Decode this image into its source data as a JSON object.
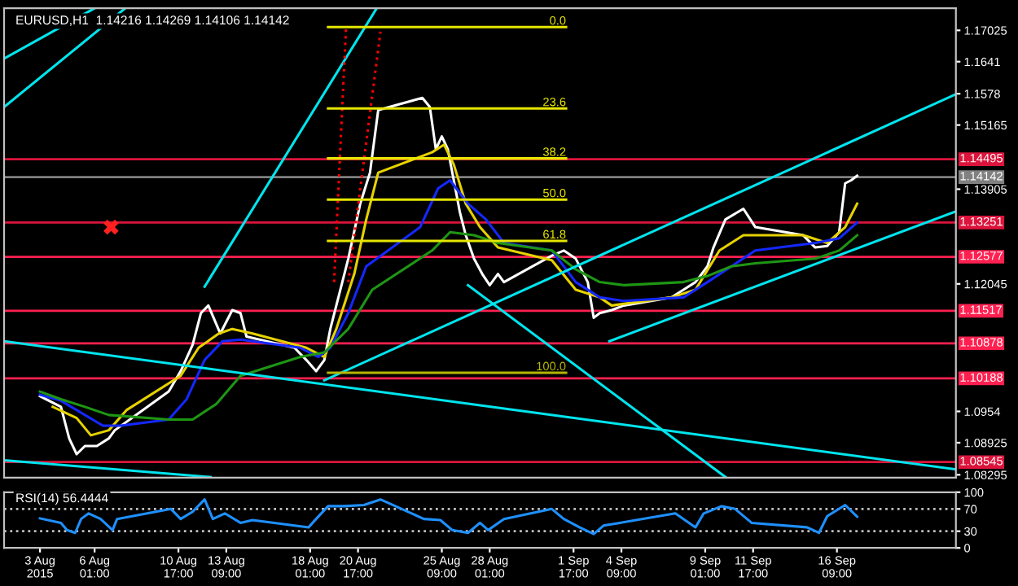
{
  "chart_data": [
    {
      "type": "line",
      "title": "EURUSD,H1  1.14216 1.14269 1.14106 1.14142",
      "tick_labels": "y",
      "xlim": [
        "2015-08-01T00:00",
        "2015-09-23T00:00"
      ],
      "ylim": [
        1.0824,
        1.1746
      ],
      "yticks": [
        1.17025,
        1.1641,
        1.1578,
        1.15165,
        1.13905,
        1.12045,
        1.0954,
        1.08925,
        1.08295
      ],
      "series": [
        {
          "color": "#ffffff",
          "x": [
            "2015-08-03T00:00",
            "2015-08-04T04:00",
            "2015-08-04T15:00",
            "2015-08-05T01:00",
            "2015-08-05T12:00",
            "2015-08-06T04:00",
            "2015-08-06T20:00",
            "2015-08-07T04:00",
            "2015-08-10T04:00",
            "2015-08-10T20:00",
            "2015-08-11T12:00",
            "2015-08-11T23:00",
            "2015-08-12T09:00",
            "2015-08-13T01:00",
            "2015-08-13T17:00",
            "2015-08-14T04:00",
            "2015-08-14T12:00",
            "2015-08-17T04:00",
            "2015-08-17T20:00",
            "2015-08-18T09:00",
            "2015-08-18T20:00",
            "2015-08-19T04:00",
            "2015-08-19T12:00",
            "2015-08-20T04:00",
            "2015-08-20T20:00",
            "2015-08-21T09:00",
            "2015-08-21T20:00",
            "2015-08-24T07:00",
            "2015-08-24T17:00",
            "2015-08-25T01:00",
            "2015-08-25T09:00",
            "2015-08-25T17:00",
            "2015-08-26T01:00",
            "2015-08-26T09:00",
            "2015-08-26T17:00",
            "2015-08-27T04:00",
            "2015-08-27T15:00",
            "2015-08-28T01:00",
            "2015-08-28T12:00",
            "2015-08-28T20:00",
            "2015-08-31T12:00",
            "2015-09-01T04:00",
            "2015-09-01T20:00",
            "2015-09-02T12:00",
            "2015-09-02T20:00",
            "2015-09-03T04:00",
            "2015-09-03T20:00",
            "2015-09-04T12:00",
            "2015-09-07T04:00",
            "2015-09-07T20:00",
            "2015-09-08T12:00",
            "2015-09-09T04:00",
            "2015-09-09T12:00",
            "2015-09-10T04:00",
            "2015-09-11T04:00",
            "2015-09-11T20:00",
            "2015-09-14T12:00",
            "2015-09-15T04:00",
            "2015-09-15T20:00",
            "2015-09-16T12:00",
            "2015-09-16T20:00",
            "2015-09-17T04:00",
            "2015-09-17T12:00"
          ],
          "values": [
            1.0984,
            1.0963,
            1.0901,
            1.087,
            1.0886,
            1.0886,
            1.0901,
            1.0917,
            1.0993,
            1.1033,
            1.1085,
            1.1147,
            1.1162,
            1.1107,
            1.1153,
            1.1147,
            1.1101,
            1.1079,
            1.1055,
            1.1033,
            1.1055,
            1.1116,
            1.1162,
            1.1254,
            1.1362,
            1.1423,
            1.1546,
            1.157,
            1.1552,
            1.1469,
            1.1494,
            1.1469,
            1.1408,
            1.1346,
            1.13,
            1.1254,
            1.1224,
            1.1202,
            1.1224,
            1.1208,
            1.126,
            1.127,
            1.1254,
            1.1208,
            1.1138,
            1.1147,
            1.1153,
            1.1162,
            1.1178,
            1.1193,
            1.1208,
            1.1239,
            1.1276,
            1.1331,
            1.1352,
            1.1316,
            1.13,
            1.1276,
            1.1279,
            1.1306,
            1.1402,
            1.1408,
            1.1417
          ]
        },
        {
          "color": "#e6d200",
          "x": [
            "2015-08-03T17:00",
            "2015-08-05T01:00",
            "2015-08-05T20:00",
            "2015-08-06T20:00",
            "2015-08-07T20:00",
            "2015-08-10T20:00",
            "2015-08-11T20:00",
            "2015-08-12T23:00",
            "2015-08-13T17:00",
            "2015-08-14T20:00",
            "2015-08-17T20:00",
            "2015-08-18T20:00",
            "2015-08-19T12:00",
            "2015-08-20T12:00",
            "2015-08-21T04:00",
            "2015-08-21T20:00",
            "2015-08-24T20:00",
            "2015-08-25T12:00",
            "2015-08-26T01:00",
            "2015-08-26T17:00",
            "2015-08-27T12:00",
            "2015-08-28T12:00",
            "2015-08-31T12:00",
            "2015-09-01T20:00",
            "2015-09-03T04:00",
            "2015-09-03T20:00",
            "2015-09-07T04:00",
            "2015-09-08T12:00",
            "2015-09-09T20:00",
            "2015-09-11T04:00",
            "2015-09-14T12:00",
            "2015-09-15T20:00",
            "2015-09-16T20:00",
            "2015-09-17T12:00"
          ],
          "values": [
            1.0963,
            1.0941,
            1.0907,
            1.0917,
            1.0957,
            1.1024,
            1.1079,
            1.1107,
            1.1116,
            1.1107,
            1.1079,
            1.1061,
            1.1116,
            1.1224,
            1.1331,
            1.1423,
            1.1463,
            1.1478,
            1.1439,
            1.1362,
            1.1316,
            1.1276,
            1.1251,
            1.1193,
            1.1178,
            1.1162,
            1.1178,
            1.1193,
            1.127,
            1.13,
            1.13,
            1.1285,
            1.1316,
            1.1362
          ]
        },
        {
          "color": "#1428ff",
          "x": [
            "2015-08-03T00:00",
            "2015-08-04T04:00",
            "2015-08-05T12:00",
            "2015-08-06T12:00",
            "2015-08-07T12:00",
            "2015-08-10T04:00",
            "2015-08-11T04:00",
            "2015-08-12T04:00",
            "2015-08-13T04:00",
            "2015-08-14T04:00",
            "2015-08-17T12:00",
            "2015-08-18T12:00",
            "2015-08-19T04:00",
            "2015-08-20T04:00",
            "2015-08-21T04:00",
            "2015-08-24T04:00",
            "2015-08-25T04:00",
            "2015-08-25T20:00",
            "2015-08-26T20:00",
            "2015-08-27T20:00",
            "2015-08-28T20:00",
            "2015-08-31T12:00",
            "2015-09-01T20:00",
            "2015-09-03T04:00",
            "2015-09-04T12:00",
            "2015-09-07T20:00",
            "2015-09-09T04:00",
            "2015-09-10T12:00",
            "2015-09-11T20:00",
            "2015-09-15T04:00",
            "2015-09-16T12:00",
            "2015-09-17T12:00"
          ],
          "values": [
            1.0987,
            1.0975,
            1.0947,
            1.0926,
            1.0926,
            1.0938,
            1.0978,
            1.1055,
            1.1092,
            1.1095,
            1.1079,
            1.1061,
            1.1079,
            1.1147,
            1.1239,
            1.1316,
            1.1392,
            1.1408,
            1.1362,
            1.1331,
            1.1285,
            1.127,
            1.1208,
            1.1178,
            1.1171,
            1.1178,
            1.1208,
            1.1239,
            1.127,
            1.1285,
            1.1294,
            1.1325
          ]
        },
        {
          "color": "#1e9614",
          "x": [
            "2015-08-03T00:00",
            "2015-08-04T04:00",
            "2015-08-05T12:00",
            "2015-08-06T20:00",
            "2015-08-10T04:00",
            "2015-08-11T12:00",
            "2015-08-12T20:00",
            "2015-08-14T04:00",
            "2015-08-17T12:00",
            "2015-08-18T20:00",
            "2015-08-20T04:00",
            "2015-08-21T12:00",
            "2015-08-24T20:00",
            "2015-08-25T20:00",
            "2015-08-27T04:00",
            "2015-08-28T12:00",
            "2015-08-31T12:00",
            "2015-09-01T20:00",
            "2015-09-03T04:00",
            "2015-09-04T12:00",
            "2015-09-07T20:00",
            "2015-09-09T04:00",
            "2015-09-10T12:00",
            "2015-09-11T20:00",
            "2015-09-15T04:00",
            "2015-09-16T12:00",
            "2015-09-17T12:00"
          ],
          "values": [
            1.0993,
            1.0978,
            1.0963,
            1.0947,
            1.0938,
            1.0938,
            1.0969,
            1.1024,
            1.1061,
            1.107,
            1.1116,
            1.1193,
            1.127,
            1.1306,
            1.13,
            1.1285,
            1.127,
            1.1233,
            1.1208,
            1.1202,
            1.1208,
            1.122,
            1.1239,
            1.1245,
            1.1254,
            1.127,
            1.13
          ]
        },
        {
          "color": "#00e5ee",
          "x": [
            "2015-08-01T00:00",
            "2015-08-06T01:00"
          ],
          "values": [
            1.1647,
            1.1746
          ]
        },
        {
          "color": "#00e5ee",
          "x": [
            "2015-08-01T00:00",
            "2015-08-07T18:00"
          ],
          "values": [
            1.1552,
            1.1746
          ]
        },
        {
          "color": "#00e5ee",
          "x": [
            "2015-08-12T04:00",
            "2015-08-21T18:00"
          ],
          "values": [
            1.1199,
            1.1746
          ]
        },
        {
          "color": "#00e5ee",
          "x": [
            "2015-08-18T20:00",
            "2015-09-23T00:00"
          ],
          "values": [
            1.1015,
            1.1577
          ]
        },
        {
          "color": "#00e5ee",
          "x": [
            "2015-09-03T17:00",
            "2015-09-23T00:00"
          ],
          "values": [
            1.1092,
            1.1347
          ]
        },
        {
          "color": "#00e5ee",
          "x": [
            "2015-08-01T00:00",
            "2015-09-23T00:00"
          ],
          "values": [
            1.1092,
            1.084
          ]
        },
        {
          "color": "#00e5ee",
          "x": [
            "2015-08-01T00:00",
            "2015-08-12T12:00"
          ],
          "values": [
            1.0858,
            1.0825
          ]
        },
        {
          "color": "#00e5ee",
          "x": [
            "2015-08-26T20:00",
            "2015-09-10T04:00"
          ],
          "values": [
            1.1202,
            1.0825
          ]
        },
        {
          "color": "#ff0000",
          "line_style": "dotted",
          "x": [
            "2015-08-19T09:00",
            "2015-08-20T01:00"
          ],
          "values": [
            1.1208,
            1.1709
          ]
        },
        {
          "color": "#ff0000",
          "line_style": "dotted",
          "x": [
            "2015-08-20T04:00",
            "2015-08-21T23:00"
          ],
          "values": [
            1.1208,
            1.17
          ]
        },
        {
          "name": "0.0",
          "color": "#e6e600",
          "x": [
            "2015-08-19T01:00",
            "2015-09-01T07:00"
          ],
          "values": [
            1.1709,
            1.1709
          ]
        },
        {
          "name": "23.6",
          "color": "#e6e600",
          "x": [
            "2015-08-19T01:00",
            "2015-09-01T07:00"
          ],
          "values": [
            1.1549,
            1.1549
          ]
        },
        {
          "name": "38.2",
          "color": "#e6e600",
          "x": [
            "2015-08-19T01:00",
            "2015-09-01T07:00"
          ],
          "values": [
            1.1451,
            1.1451
          ]
        },
        {
          "name": "50.0",
          "color": "#e6e600",
          "x": [
            "2015-08-19T01:00",
            "2015-09-01T07:00"
          ],
          "values": [
            1.137,
            1.137
          ]
        },
        {
          "name": "61.8",
          "color": "#e6e600",
          "x": [
            "2015-08-19T01:00",
            "2015-09-01T07:00"
          ],
          "values": [
            1.1289,
            1.1289
          ]
        },
        {
          "name": "100.0",
          "color": "#b4b400",
          "x": [
            "2015-08-19T01:00",
            "2015-09-01T07:00"
          ],
          "values": [
            1.103,
            1.103
          ]
        },
        {
          "type": "scatter",
          "marker": "cross",
          "color": "#ff2020",
          "x": [
            "2015-08-06T23:00"
          ],
          "values": [
            1.1316
          ]
        }
      ],
      "ref_lines": [
        {
          "axis": "y",
          "value": 1.14495,
          "label": "1.14495",
          "color": "#dc143c"
        },
        {
          "axis": "y",
          "value": 1.14142,
          "label": "1.14142",
          "color": "#808080"
        },
        {
          "axis": "y",
          "value": 1.13251,
          "label": "1.13251",
          "color": "#dc143c"
        },
        {
          "axis": "y",
          "value": 1.12577,
          "label": "1.12577",
          "color": "#ff2050"
        },
        {
          "axis": "y",
          "value": 1.11517,
          "label": "1.11517",
          "color": "#ff2050"
        },
        {
          "axis": "y",
          "value": 1.10878,
          "label": "1.10878",
          "color": "#ff2050"
        },
        {
          "axis": "y",
          "value": 1.10188,
          "label": "1.10188",
          "color": "#ff2050"
        },
        {
          "axis": "y",
          "value": 1.08545,
          "label": "1.08545",
          "color": "#dc143c"
        }
      ]
    },
    {
      "type": "line",
      "title": "RSI(14) 56.4444",
      "xlim": [
        "2015-08-01T00:00",
        "2015-09-23T00:00"
      ],
      "ylim": [
        0,
        100
      ],
      "yticks": [
        0,
        30,
        70,
        100
      ],
      "xticks": [
        {
          "value": "2015-08-03T00:00",
          "label": "3 Aug 2015"
        },
        {
          "value": "2015-08-06T01:00",
          "label": "6 Aug 01:00"
        },
        {
          "value": "2015-08-10T17:00",
          "label": "10 Aug 17:00"
        },
        {
          "value": "2015-08-13T09:00",
          "label": "13 Aug 09:00"
        },
        {
          "value": "2015-08-18T01:00",
          "label": "18 Aug 01:00"
        },
        {
          "value": "2015-08-20T17:00",
          "label": "20 Aug 17:00"
        },
        {
          "value": "2015-08-25T09:00",
          "label": "25 Aug 09:00"
        },
        {
          "value": "2015-08-28T01:00",
          "label": "28 Aug 01:00"
        },
        {
          "value": "2015-09-01T17:00",
          "label": "1 Sep 17:00"
        },
        {
          "value": "2015-09-04T09:00",
          "label": "4 Sep 09:00"
        },
        {
          "value": "2015-09-09T01:00",
          "label": "9 Sep 01:00"
        },
        {
          "value": "2015-09-11T17:00",
          "label": "11 Sep 17:00"
        },
        {
          "value": "2015-09-16T09:00",
          "label": "16 Sep 09:00"
        }
      ],
      "series": [
        {
          "color": "#1e90ff",
          "x": [
            "2015-08-03T00:00",
            "2015-08-04T04:00",
            "2015-08-04T12:00",
            "2015-08-04T23:00",
            "2015-08-05T07:00",
            "2015-08-05T17:00",
            "2015-08-06T09:00",
            "2015-08-07T01:00",
            "2015-08-07T07:00",
            "2015-08-10T07:00",
            "2015-08-10T20:00",
            "2015-08-11T12:00",
            "2015-08-12T04:00",
            "2015-08-12T15:00",
            "2015-08-13T07:00",
            "2015-08-14T04:00",
            "2015-08-14T20:00",
            "2015-08-17T23:00",
            "2015-08-18T09:00",
            "2015-08-19T01:00",
            "2015-08-19T23:00",
            "2015-08-21T01:00",
            "2015-08-21T23:00",
            "2015-08-24T09:00",
            "2015-08-25T07:00",
            "2015-08-25T23:00",
            "2015-08-26T20:00",
            "2015-08-27T12:00",
            "2015-08-27T23:00",
            "2015-08-28T20:00",
            "2015-08-31T12:00",
            "2015-09-01T04:00",
            "2015-09-02T01:00",
            "2015-09-02T20:00",
            "2015-09-03T09:00",
            "2015-09-04T07:00",
            "2015-09-07T09:00",
            "2015-09-08T12:00",
            "2015-09-08T23:00",
            "2015-09-09T23:00",
            "2015-09-10T17:00",
            "2015-09-11T15:00",
            "2015-09-14T17:00",
            "2015-09-15T09:00",
            "2015-09-15T20:00",
            "2015-09-16T20:00",
            "2015-09-17T12:00"
          ],
          "values": [
            53,
            45,
            32,
            27,
            52,
            62,
            52,
            32,
            52,
            70,
            52,
            65,
            87,
            52,
            62,
            45,
            50,
            37,
            52,
            75,
            75,
            77,
            87,
            52,
            50,
            32,
            27,
            45,
            32,
            52,
            70,
            52,
            37,
            25,
            40,
            45,
            62,
            37,
            62,
            75,
            70,
            45,
            37,
            27,
            57,
            77,
            56
          ]
        }
      ],
      "ref_lines": [
        {
          "axis": "y",
          "value": 70,
          "color": "#c0c0c0",
          "line_style": "dotted"
        },
        {
          "axis": "y",
          "value": 30,
          "color": "#c0c0c0",
          "line_style": "dotted"
        }
      ]
    }
  ]
}
